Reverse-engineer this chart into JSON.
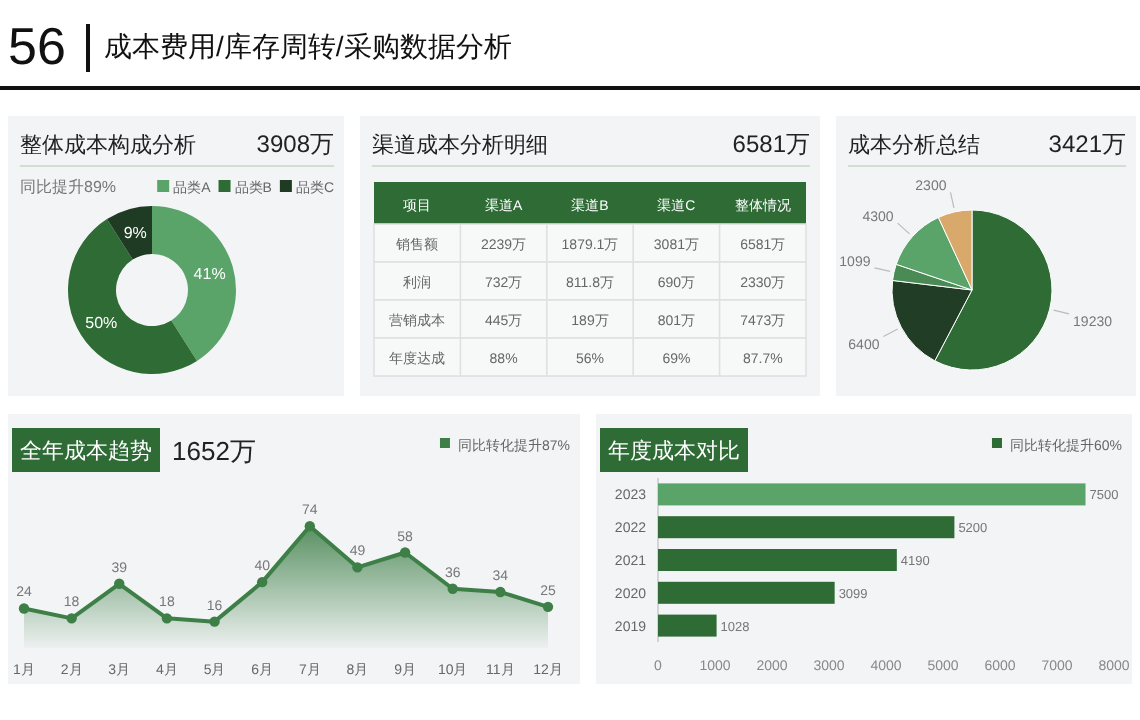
{
  "chart_data": [
    {
      "type": "other",
      "title": "56",
      "subtitle": "成本费用/库存周转/采购数据分析"
    },
    {
      "type": "donut",
      "title": "整体成本构成分析",
      "subtitle": "同比提升89%",
      "annotations": [
        "3908万"
      ],
      "categories": [
        "品类A",
        "品类B",
        "品类C"
      ],
      "values": [
        41,
        50,
        9
      ],
      "value_labels": [
        "41%",
        "50%",
        "9%"
      ],
      "colors": [
        "#5aa469",
        "#2e6b35",
        "#1f3b24"
      ],
      "legend": "top right"
    },
    {
      "type": "other",
      "title": "渠道成本分析明细",
      "annotations": [
        "6581万"
      ],
      "categories": [
        "项目",
        "渠道A",
        "渠道B",
        "渠道C",
        "整体情况"
      ],
      "cell_labels": [
        [
          "销售额",
          "2239万",
          "1879.1万",
          "3081万",
          "6581万"
        ],
        [
          "利润",
          "732万",
          "811.8万",
          "690万",
          "2330万"
        ],
        [
          "营销成本",
          "445万",
          "189万",
          "801万",
          "7473万"
        ],
        [
          "年度达成",
          "88%",
          "56%",
          "69%",
          "87.7%"
        ]
      ]
    },
    {
      "type": "pie",
      "title": "成本分析总结",
      "annotations": [
        "3421万"
      ],
      "categories": [
        null,
        null,
        null,
        null,
        null
      ],
      "values": [
        19230,
        6400,
        1099,
        4300,
        2300
      ],
      "colors": [
        "#2e6b35",
        "#213d25",
        "#4a8a55",
        "#5aa469",
        "#d9a96b"
      ],
      "data_labels": true
    },
    {
      "type": "area",
      "title": "全年成本趋势",
      "annotations": [
        "1652万"
      ],
      "categories": [
        "1月",
        "2月",
        "3月",
        "4月",
        "5月",
        "6月",
        "7月",
        "8月",
        "9月",
        "10月",
        "11月",
        "12月"
      ],
      "series": [
        {
          "name": "同比转化提升87%",
          "color": "#3d7f47",
          "values": [
            24,
            18,
            39,
            18,
            16,
            40,
            74,
            49,
            58,
            36,
            34,
            25
          ]
        }
      ],
      "legend": "top right",
      "marker": "circle",
      "data_labels": true
    },
    {
      "type": "bar",
      "orientation": "horizontal",
      "title": "年度成本对比",
      "categories": [
        "2023",
        "2022",
        "2021",
        "2020",
        "2019"
      ],
      "series": [
        {
          "name": "同比转化提升60%",
          "colors": [
            "#5aa469",
            "#2e6b35",
            "#2e6b35",
            "#2e6b35",
            "#2e6b35"
          ],
          "values": [
            7500,
            5200,
            4190,
            3099,
            1028
          ]
        }
      ],
      "xlim": [
        0,
        8000
      ],
      "xticks": [
        0,
        1000,
        2000,
        3000,
        4000,
        5000,
        6000,
        7000,
        8000
      ],
      "legend": "top right",
      "data_labels": true
    }
  ]
}
